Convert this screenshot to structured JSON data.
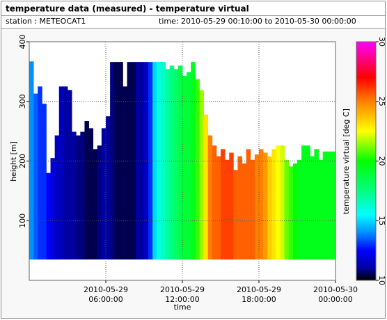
{
  "header": {
    "title": "temperature data (measured) - temperature virtual",
    "station": "station : METEOCAT1",
    "time": "time: 2010-05-29 00:10:00 to 2010-05-30 00:00:00"
  },
  "chart_data": {
    "type": "heatmap",
    "xlabel": "time",
    "ylabel": "height [m]",
    "colorbar_label": "temperature virtual [deg C]",
    "x": [
      "2010-05-29 00:10:00",
      "2010-05-29 00:30:00",
      "2010-05-29 00:50:00",
      "2010-05-29 01:10:00",
      "2010-05-29 01:30:00",
      "2010-05-29 01:50:00",
      "2010-05-29 02:10:00",
      "2010-05-29 02:30:00",
      "2010-05-29 02:50:00",
      "2010-05-29 03:10:00",
      "2010-05-29 03:30:00",
      "2010-05-29 03:50:00",
      "2010-05-29 04:10:00",
      "2010-05-29 04:30:00",
      "2010-05-29 04:50:00",
      "2010-05-29 05:10:00",
      "2010-05-29 05:30:00",
      "2010-05-29 05:50:00",
      "2010-05-29 06:10:00",
      "2010-05-29 06:30:00",
      "2010-05-29 06:50:00",
      "2010-05-29 07:10:00",
      "2010-05-29 07:30:00",
      "2010-05-29 07:50:00",
      "2010-05-29 08:10:00",
      "2010-05-29 08:30:00",
      "2010-05-29 08:50:00",
      "2010-05-29 09:10:00",
      "2010-05-29 09:30:00",
      "2010-05-29 09:50:00",
      "2010-05-29 10:10:00",
      "2010-05-29 10:30:00",
      "2010-05-29 10:50:00",
      "2010-05-29 11:10:00",
      "2010-05-29 11:30:00",
      "2010-05-29 11:50:00",
      "2010-05-29 12:10:00",
      "2010-05-29 12:30:00",
      "2010-05-29 12:50:00",
      "2010-05-29 13:10:00",
      "2010-05-29 13:30:00",
      "2010-05-29 13:50:00",
      "2010-05-29 14:10:00",
      "2010-05-29 14:30:00",
      "2010-05-29 14:50:00",
      "2010-05-29 15:10:00",
      "2010-05-29 15:30:00",
      "2010-05-29 15:50:00",
      "2010-05-29 16:10:00",
      "2010-05-29 16:30:00",
      "2010-05-29 16:50:00",
      "2010-05-29 17:10:00",
      "2010-05-29 17:30:00",
      "2010-05-29 17:50:00",
      "2010-05-29 18:10:00",
      "2010-05-29 18:30:00",
      "2010-05-29 18:50:00",
      "2010-05-29 19:10:00",
      "2010-05-29 19:30:00",
      "2010-05-29 19:50:00",
      "2010-05-29 20:10:00",
      "2010-05-29 20:30:00",
      "2010-05-29 20:50:00",
      "2010-05-29 21:10:00",
      "2010-05-29 21:30:00",
      "2010-05-29 21:50:00",
      "2010-05-29 22:10:00",
      "2010-05-29 22:30:00",
      "2010-05-29 22:50:00",
      "2010-05-29 23:10:00",
      "2010-05-29 23:30:00",
      "2010-05-29 23:50:00"
    ],
    "top": [
      367,
      313,
      325,
      296,
      180,
      205,
      243,
      325,
      325,
      319,
      249,
      243,
      249,
      267,
      255,
      220,
      226,
      255,
      275,
      366,
      366,
      366,
      325,
      366,
      366,
      366,
      366,
      366,
      366,
      366,
      366,
      366,
      354,
      360,
      354,
      360,
      343,
      349,
      366,
      337,
      319,
      278,
      243,
      226,
      208,
      220,
      202,
      214,
      185,
      208,
      196,
      220,
      202,
      211,
      220,
      214,
      208,
      220,
      226,
      226,
      202,
      191,
      196,
      202,
      226,
      226,
      208,
      220,
      202,
      216,
      216,
      216
    ],
    "base": 35,
    "values": [
      14,
      13.5,
      13,
      13,
      12.5,
      12,
      11.5,
      11.5,
      11,
      11,
      11,
      10.8,
      10.8,
      10.5,
      10.5,
      10.5,
      10.8,
      11,
      11,
      10.8,
      10.5,
      10.5,
      10.5,
      10.5,
      10.5,
      11,
      11,
      11.5,
      13,
      15,
      16,
      16.5,
      17,
      17.5,
      18,
      18.5,
      19,
      19,
      19.5,
      20.5,
      21.5,
      23,
      25,
      25.5,
      25.5,
      26,
      26,
      26,
      25.5,
      25.5,
      25.5,
      25.5,
      25.5,
      25,
      25,
      24.5,
      23.5,
      23,
      22.5,
      22,
      21,
      20.5,
      20,
      19.5,
      19.5,
      19.5,
      19.5,
      19.5,
      19.5,
      19.5,
      19.5,
      19.5
    ],
    "xlim": [
      "2010-05-29 00:00:00",
      "2010-05-30 00:00:00"
    ],
    "xticks": [
      {
        "value": "2010-05-29 06:00:00",
        "label": [
          "2010-05-29",
          "06:00:00"
        ]
      },
      {
        "value": "2010-05-29 12:00:00",
        "label": [
          "2010-05-29",
          "12:00:00"
        ]
      },
      {
        "value": "2010-05-29 18:00:00",
        "label": [
          "2010-05-29",
          "18:00:00"
        ]
      },
      {
        "value": "2010-05-30 00:00:00",
        "label": [
          "2010-05-30",
          "00:00:00"
        ]
      }
    ],
    "ylim": [
      0,
      400
    ],
    "yticks": [
      100,
      200,
      300,
      400
    ],
    "clim": [
      10,
      30
    ],
    "cticks": [
      10,
      15,
      20,
      25,
      30
    ],
    "colormap": [
      [
        10,
        "#000000"
      ],
      [
        11,
        "#0000a0"
      ],
      [
        12.5,
        "#0000ff"
      ],
      [
        14,
        "#0090ff"
      ],
      [
        15.5,
        "#00ffff"
      ],
      [
        17.5,
        "#00ff80"
      ],
      [
        20,
        "#00ff00"
      ],
      [
        22.5,
        "#ffff00"
      ],
      [
        25,
        "#ff8000"
      ],
      [
        27,
        "#ff0000"
      ],
      [
        30,
        "#ff00ff"
      ]
    ],
    "grid": true
  }
}
